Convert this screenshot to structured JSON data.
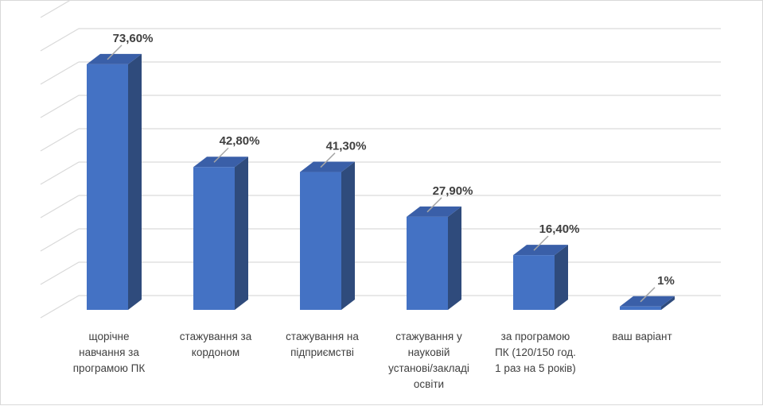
{
  "chart_data": {
    "type": "bar",
    "style": "3d-column",
    "categories": [
      [
        "щорічне",
        "навчання за",
        "програмою ПК"
      ],
      [
        "стажування за",
        "кордоном"
      ],
      [
        "стажування на",
        "підприємстві"
      ],
      [
        "стажування у",
        "науковій",
        "установі/закладі",
        "освіти"
      ],
      [
        "за програмою",
        "ПК (120/150 год.",
        "1 раз на 5 років)"
      ],
      [
        "ваш варіант"
      ]
    ],
    "values": [
      73.6,
      42.8,
      41.3,
      27.9,
      16.4,
      1
    ],
    "data_labels": [
      "73,60%",
      "42,80%",
      "41,30%",
      "27,90%",
      "16,40%",
      "1%"
    ],
    "title": "",
    "xlabel": "",
    "ylabel": "",
    "ylim": [
      0,
      80
    ],
    "grid": true,
    "legend": "none",
    "colors": {
      "bar_front": "#4472c4",
      "bar_side": "#2f4b7c",
      "bar_top": "#3a5fa8",
      "grid": "#d9d9d9",
      "text": "#404040",
      "leader": "#a6a6a6"
    }
  }
}
